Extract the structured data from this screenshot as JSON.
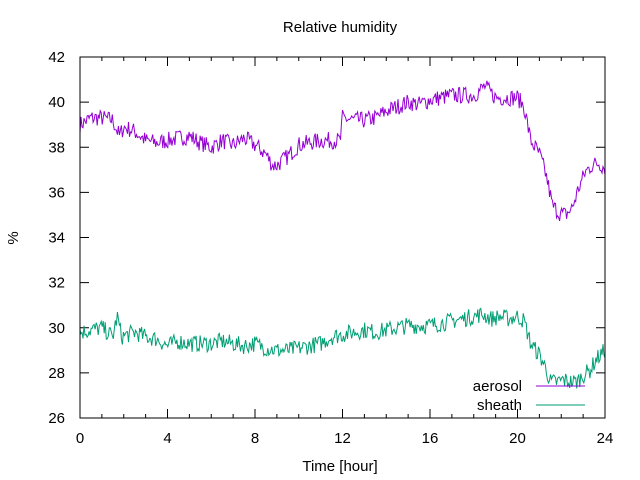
{
  "chart_data": {
    "type": "line",
    "title": "Relative humidity",
    "xlabel": "Time [hour]",
    "ylabel": "%",
    "xlim": [
      0,
      24
    ],
    "ylim": [
      26,
      42
    ],
    "xticks": [
      0,
      4,
      8,
      12,
      16,
      20,
      24
    ],
    "yticks": [
      26,
      28,
      30,
      32,
      34,
      36,
      38,
      40,
      42
    ],
    "x_minor_step": 1,
    "y_minor_step": 2,
    "grid": false,
    "legend_position": "bottom-right",
    "series": [
      {
        "name": "aerosol",
        "color": "#9400d3",
        "x": [
          0,
          0.5,
          1,
          1.5,
          1.8,
          2,
          2.5,
          3,
          3.5,
          4,
          4.5,
          5,
          5.5,
          6,
          6.5,
          7,
          7.5,
          8,
          8.5,
          8.8,
          9,
          9.5,
          10,
          10.5,
          11,
          11.5,
          11.9,
          12,
          12.5,
          13,
          13.5,
          14,
          14.5,
          15,
          15.5,
          16,
          16.5,
          17,
          17.5,
          18,
          18.5,
          19,
          19.5,
          20,
          20.3,
          20.6,
          21,
          21.3,
          21.6,
          21.9,
          22.2,
          22.5,
          22.8,
          23.1,
          23.4,
          23.7,
          24
        ],
        "y": [
          39.0,
          39.3,
          39.3,
          39.2,
          38.5,
          38.9,
          38.7,
          38.3,
          38.2,
          38.3,
          38.4,
          38.5,
          38.2,
          38.0,
          38.3,
          38.1,
          38.4,
          38.1,
          37.7,
          37.2,
          37.2,
          37.6,
          38.1,
          38.2,
          38.3,
          38.3,
          38.3,
          39.3,
          39.2,
          39.2,
          39.3,
          39.6,
          39.8,
          40.0,
          39.9,
          40.1,
          40.2,
          40.3,
          40.3,
          40.3,
          40.7,
          40.2,
          40.2,
          40.2,
          39.8,
          38.3,
          37.7,
          36.8,
          35.4,
          35.1,
          35.0,
          35.3,
          36.2,
          36.9,
          37.2,
          37.3,
          37.1
        ]
      },
      {
        "name": "sheath",
        "color": "#009e73",
        "x": [
          0,
          0.5,
          1,
          1.5,
          1.7,
          1.9,
          2.5,
          3,
          3.5,
          4,
          4.5,
          5,
          5.5,
          6,
          6.5,
          7,
          7.5,
          8,
          8.5,
          9,
          9.5,
          10,
          10.5,
          11,
          11.5,
          12,
          12.5,
          13,
          13.5,
          14,
          14.5,
          15,
          15.5,
          16,
          16.5,
          17,
          17.5,
          18,
          18.4,
          18.8,
          19.2,
          19.6,
          20,
          20.3,
          20.6,
          21,
          21.3,
          21.5,
          21.8,
          22.1,
          22.4,
          22.7,
          23,
          23.3,
          23.6,
          24
        ],
        "y": [
          29.8,
          29.9,
          30.0,
          29.6,
          30.5,
          29.6,
          29.8,
          29.6,
          29.5,
          29.2,
          29.4,
          29.3,
          29.3,
          29.3,
          29.4,
          29.3,
          29.2,
          29.3,
          29.1,
          29.0,
          29.0,
          29.1,
          29.2,
          29.3,
          29.6,
          29.7,
          29.8,
          29.9,
          29.8,
          29.9,
          30.0,
          30.1,
          30.1,
          30.1,
          30.2,
          30.3,
          30.4,
          30.5,
          30.6,
          30.4,
          30.5,
          30.4,
          30.5,
          30.3,
          29.3,
          28.8,
          28.2,
          27.6,
          27.6,
          27.7,
          27.6,
          27.6,
          27.9,
          28.1,
          28.6,
          29.0
        ]
      }
    ]
  }
}
